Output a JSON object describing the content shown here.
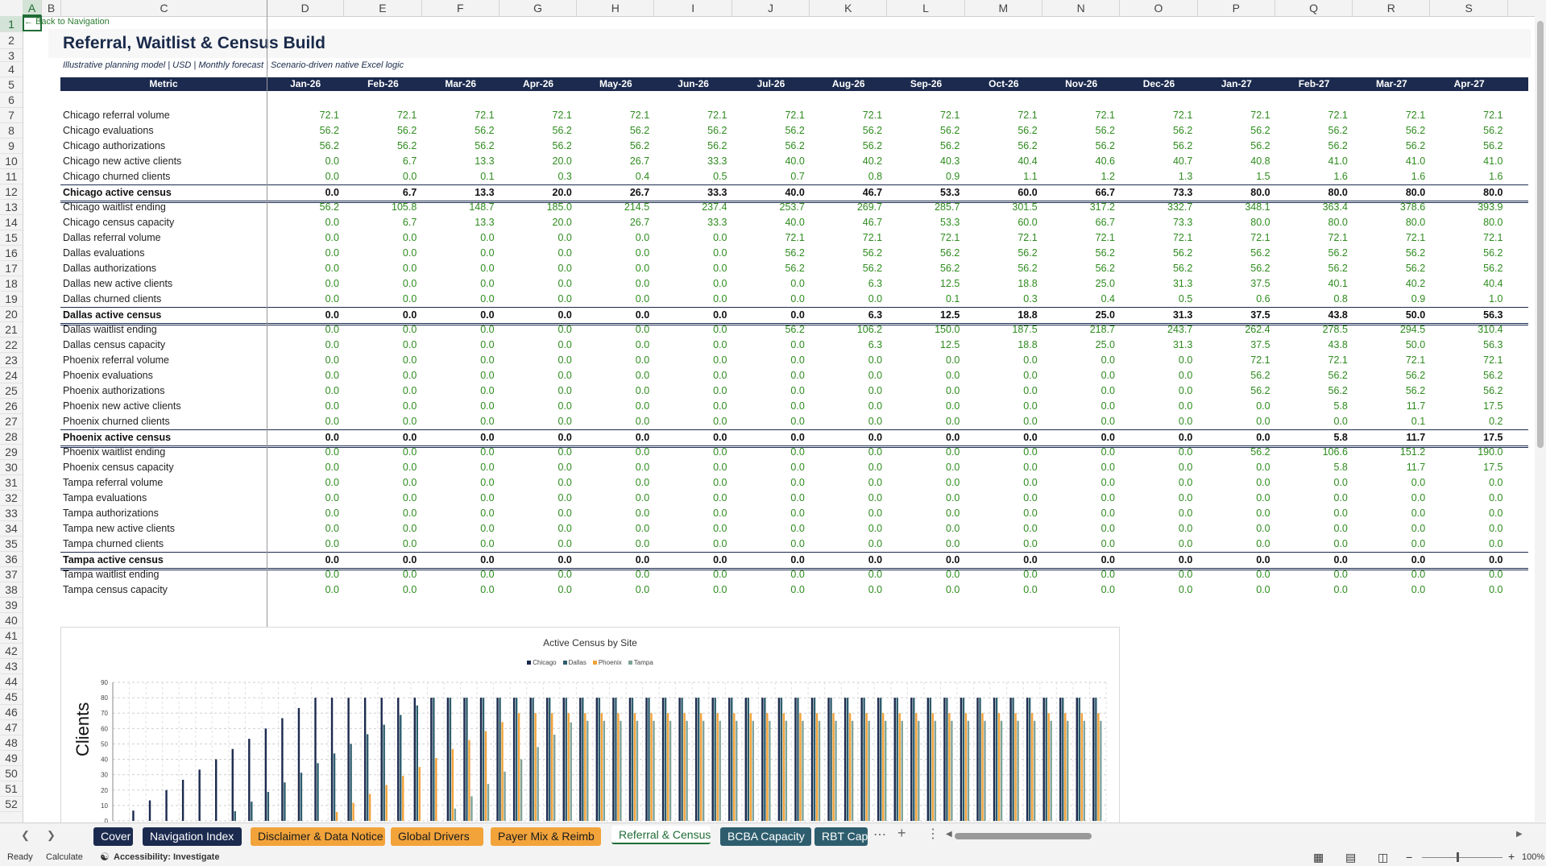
{
  "columns": [
    "A",
    "B",
    "C",
    "D",
    "E",
    "F",
    "G",
    "H",
    "I",
    "J",
    "K",
    "L",
    "M",
    "N",
    "O",
    "P",
    "Q",
    "R",
    "S"
  ],
  "row_numbers": [
    1,
    2,
    3,
    4,
    5,
    6,
    7,
    8,
    9,
    10,
    11,
    12,
    13,
    14,
    15,
    16,
    17,
    18,
    19,
    20,
    21,
    22,
    23,
    24,
    25,
    26,
    27,
    28,
    29,
    30,
    31,
    32,
    33,
    34,
    35,
    36,
    37,
    38,
    39,
    40,
    41,
    42,
    43,
    44,
    45,
    46,
    47,
    48,
    49,
    50,
    51,
    52
  ],
  "back_link": "← Back to Navigation",
  "title": "Referral, Waitlist & Census Build",
  "subtitle": "Illustrative planning model | USD | Monthly forecast | Scenario-driven native Excel logic",
  "header": {
    "metric_label": "Metric",
    "months": [
      "Jan-26",
      "Feb-26",
      "Mar-26",
      "Apr-26",
      "May-26",
      "Jun-26",
      "Jul-26",
      "Aug-26",
      "Sep-26",
      "Oct-26",
      "Nov-26",
      "Dec-26",
      "Jan-27",
      "Feb-27",
      "Mar-27",
      "Apr-27"
    ]
  },
  "rows": [
    {
      "label": "Chicago referral volume",
      "values": [
        "72.1",
        "72.1",
        "72.1",
        "72.1",
        "72.1",
        "72.1",
        "72.1",
        "72.1",
        "72.1",
        "72.1",
        "72.1",
        "72.1",
        "72.1",
        "72.1",
        "72.1",
        "72.1"
      ],
      "total": false
    },
    {
      "label": "Chicago evaluations",
      "values": [
        "56.2",
        "56.2",
        "56.2",
        "56.2",
        "56.2",
        "56.2",
        "56.2",
        "56.2",
        "56.2",
        "56.2",
        "56.2",
        "56.2",
        "56.2",
        "56.2",
        "56.2",
        "56.2"
      ],
      "total": false
    },
    {
      "label": "Chicago authorizations",
      "values": [
        "56.2",
        "56.2",
        "56.2",
        "56.2",
        "56.2",
        "56.2",
        "56.2",
        "56.2",
        "56.2",
        "56.2",
        "56.2",
        "56.2",
        "56.2",
        "56.2",
        "56.2",
        "56.2"
      ],
      "total": false
    },
    {
      "label": "Chicago new active clients",
      "values": [
        "0.0",
        "6.7",
        "13.3",
        "20.0",
        "26.7",
        "33.3",
        "40.0",
        "40.2",
        "40.3",
        "40.4",
        "40.6",
        "40.7",
        "40.8",
        "41.0",
        "41.0",
        "41.0"
      ],
      "total": false
    },
    {
      "label": "Chicago churned clients",
      "values": [
        "0.0",
        "0.0",
        "0.1",
        "0.3",
        "0.4",
        "0.5",
        "0.7",
        "0.8",
        "0.9",
        "1.1",
        "1.2",
        "1.3",
        "1.5",
        "1.6",
        "1.6",
        "1.6"
      ],
      "total": false
    },
    {
      "label": "Chicago active census",
      "values": [
        "0.0",
        "6.7",
        "13.3",
        "20.0",
        "26.7",
        "33.3",
        "40.0",
        "46.7",
        "53.3",
        "60.0",
        "66.7",
        "73.3",
        "80.0",
        "80.0",
        "80.0",
        "80.0"
      ],
      "total": true
    },
    {
      "label": "Chicago waitlist ending",
      "values": [
        "56.2",
        "105.8",
        "148.7",
        "185.0",
        "214.5",
        "237.4",
        "253.7",
        "269.7",
        "285.7",
        "301.5",
        "317.2",
        "332.7",
        "348.1",
        "363.4",
        "378.6",
        "393.9"
      ],
      "total": false
    },
    {
      "label": "Chicago census capacity",
      "values": [
        "0.0",
        "6.7",
        "13.3",
        "20.0",
        "26.7",
        "33.3",
        "40.0",
        "46.7",
        "53.3",
        "60.0",
        "66.7",
        "73.3",
        "80.0",
        "80.0",
        "80.0",
        "80.0"
      ],
      "total": false
    },
    {
      "label": "Dallas referral volume",
      "values": [
        "0.0",
        "0.0",
        "0.0",
        "0.0",
        "0.0",
        "0.0",
        "72.1",
        "72.1",
        "72.1",
        "72.1",
        "72.1",
        "72.1",
        "72.1",
        "72.1",
        "72.1",
        "72.1"
      ],
      "total": false
    },
    {
      "label": "Dallas evaluations",
      "values": [
        "0.0",
        "0.0",
        "0.0",
        "0.0",
        "0.0",
        "0.0",
        "56.2",
        "56.2",
        "56.2",
        "56.2",
        "56.2",
        "56.2",
        "56.2",
        "56.2",
        "56.2",
        "56.2"
      ],
      "total": false
    },
    {
      "label": "Dallas authorizations",
      "values": [
        "0.0",
        "0.0",
        "0.0",
        "0.0",
        "0.0",
        "0.0",
        "56.2",
        "56.2",
        "56.2",
        "56.2",
        "56.2",
        "56.2",
        "56.2",
        "56.2",
        "56.2",
        "56.2"
      ],
      "total": false
    },
    {
      "label": "Dallas new active clients",
      "values": [
        "0.0",
        "0.0",
        "0.0",
        "0.0",
        "0.0",
        "0.0",
        "0.0",
        "6.3",
        "12.5",
        "18.8",
        "25.0",
        "31.3",
        "37.5",
        "40.1",
        "40.2",
        "40.4"
      ],
      "total": false
    },
    {
      "label": "Dallas churned clients",
      "values": [
        "0.0",
        "0.0",
        "0.0",
        "0.0",
        "0.0",
        "0.0",
        "0.0",
        "0.0",
        "0.1",
        "0.3",
        "0.4",
        "0.5",
        "0.6",
        "0.8",
        "0.9",
        "1.0"
      ],
      "total": false
    },
    {
      "label": "Dallas active census",
      "values": [
        "0.0",
        "0.0",
        "0.0",
        "0.0",
        "0.0",
        "0.0",
        "0.0",
        "6.3",
        "12.5",
        "18.8",
        "25.0",
        "31.3",
        "37.5",
        "43.8",
        "50.0",
        "56.3"
      ],
      "total": true
    },
    {
      "label": "Dallas waitlist ending",
      "values": [
        "0.0",
        "0.0",
        "0.0",
        "0.0",
        "0.0",
        "0.0",
        "56.2",
        "106.2",
        "150.0",
        "187.5",
        "218.7",
        "243.7",
        "262.4",
        "278.5",
        "294.5",
        "310.4"
      ],
      "total": false
    },
    {
      "label": "Dallas census capacity",
      "values": [
        "0.0",
        "0.0",
        "0.0",
        "0.0",
        "0.0",
        "0.0",
        "0.0",
        "6.3",
        "12.5",
        "18.8",
        "25.0",
        "31.3",
        "37.5",
        "43.8",
        "50.0",
        "56.3"
      ],
      "total": false
    },
    {
      "label": "Phoenix referral volume",
      "values": [
        "0.0",
        "0.0",
        "0.0",
        "0.0",
        "0.0",
        "0.0",
        "0.0",
        "0.0",
        "0.0",
        "0.0",
        "0.0",
        "0.0",
        "72.1",
        "72.1",
        "72.1",
        "72.1"
      ],
      "total": false
    },
    {
      "label": "Phoenix evaluations",
      "values": [
        "0.0",
        "0.0",
        "0.0",
        "0.0",
        "0.0",
        "0.0",
        "0.0",
        "0.0",
        "0.0",
        "0.0",
        "0.0",
        "0.0",
        "56.2",
        "56.2",
        "56.2",
        "56.2"
      ],
      "total": false
    },
    {
      "label": "Phoenix authorizations",
      "values": [
        "0.0",
        "0.0",
        "0.0",
        "0.0",
        "0.0",
        "0.0",
        "0.0",
        "0.0",
        "0.0",
        "0.0",
        "0.0",
        "0.0",
        "56.2",
        "56.2",
        "56.2",
        "56.2"
      ],
      "total": false
    },
    {
      "label": "Phoenix new active clients",
      "values": [
        "0.0",
        "0.0",
        "0.0",
        "0.0",
        "0.0",
        "0.0",
        "0.0",
        "0.0",
        "0.0",
        "0.0",
        "0.0",
        "0.0",
        "0.0",
        "5.8",
        "11.7",
        "17.5"
      ],
      "total": false
    },
    {
      "label": "Phoenix churned clients",
      "values": [
        "0.0",
        "0.0",
        "0.0",
        "0.0",
        "0.0",
        "0.0",
        "0.0",
        "0.0",
        "0.0",
        "0.0",
        "0.0",
        "0.0",
        "0.0",
        "0.0",
        "0.1",
        "0.2"
      ],
      "total": false
    },
    {
      "label": "Phoenix active census",
      "values": [
        "0.0",
        "0.0",
        "0.0",
        "0.0",
        "0.0",
        "0.0",
        "0.0",
        "0.0",
        "0.0",
        "0.0",
        "0.0",
        "0.0",
        "0.0",
        "5.8",
        "11.7",
        "17.5"
      ],
      "total": true
    },
    {
      "label": "Phoenix waitlist ending",
      "values": [
        "0.0",
        "0.0",
        "0.0",
        "0.0",
        "0.0",
        "0.0",
        "0.0",
        "0.0",
        "0.0",
        "0.0",
        "0.0",
        "0.0",
        "56.2",
        "106.6",
        "151.2",
        "190.0"
      ],
      "total": false
    },
    {
      "label": "Phoenix census capacity",
      "values": [
        "0.0",
        "0.0",
        "0.0",
        "0.0",
        "0.0",
        "0.0",
        "0.0",
        "0.0",
        "0.0",
        "0.0",
        "0.0",
        "0.0",
        "0.0",
        "5.8",
        "11.7",
        "17.5"
      ],
      "total": false
    },
    {
      "label": "Tampa referral volume",
      "values": [
        "0.0",
        "0.0",
        "0.0",
        "0.0",
        "0.0",
        "0.0",
        "0.0",
        "0.0",
        "0.0",
        "0.0",
        "0.0",
        "0.0",
        "0.0",
        "0.0",
        "0.0",
        "0.0"
      ],
      "total": false
    },
    {
      "label": "Tampa evaluations",
      "values": [
        "0.0",
        "0.0",
        "0.0",
        "0.0",
        "0.0",
        "0.0",
        "0.0",
        "0.0",
        "0.0",
        "0.0",
        "0.0",
        "0.0",
        "0.0",
        "0.0",
        "0.0",
        "0.0"
      ],
      "total": false
    },
    {
      "label": "Tampa authorizations",
      "values": [
        "0.0",
        "0.0",
        "0.0",
        "0.0",
        "0.0",
        "0.0",
        "0.0",
        "0.0",
        "0.0",
        "0.0",
        "0.0",
        "0.0",
        "0.0",
        "0.0",
        "0.0",
        "0.0"
      ],
      "total": false
    },
    {
      "label": "Tampa new active clients",
      "values": [
        "0.0",
        "0.0",
        "0.0",
        "0.0",
        "0.0",
        "0.0",
        "0.0",
        "0.0",
        "0.0",
        "0.0",
        "0.0",
        "0.0",
        "0.0",
        "0.0",
        "0.0",
        "0.0"
      ],
      "total": false
    },
    {
      "label": "Tampa churned clients",
      "values": [
        "0.0",
        "0.0",
        "0.0",
        "0.0",
        "0.0",
        "0.0",
        "0.0",
        "0.0",
        "0.0",
        "0.0",
        "0.0",
        "0.0",
        "0.0",
        "0.0",
        "0.0",
        "0.0"
      ],
      "total": false
    },
    {
      "label": "Tampa active census",
      "values": [
        "0.0",
        "0.0",
        "0.0",
        "0.0",
        "0.0",
        "0.0",
        "0.0",
        "0.0",
        "0.0",
        "0.0",
        "0.0",
        "0.0",
        "0.0",
        "0.0",
        "0.0",
        "0.0"
      ],
      "total": true
    },
    {
      "label": "Tampa waitlist ending",
      "values": [
        "0.0",
        "0.0",
        "0.0",
        "0.0",
        "0.0",
        "0.0",
        "0.0",
        "0.0",
        "0.0",
        "0.0",
        "0.0",
        "0.0",
        "0.0",
        "0.0",
        "0.0",
        "0.0"
      ],
      "total": false
    },
    {
      "label": "Tampa census capacity",
      "values": [
        "0.0",
        "0.0",
        "0.0",
        "0.0",
        "0.0",
        "0.0",
        "0.0",
        "0.0",
        "0.0",
        "0.0",
        "0.0",
        "0.0",
        "0.0",
        "0.0",
        "0.0",
        "0.0"
      ],
      "total": false
    }
  ],
  "chart_data": {
    "type": "bar",
    "title": "Active Census by Site",
    "ylabel": "Clients",
    "ylim": [
      0,
      90
    ],
    "yticks": [
      0,
      10,
      20,
      30,
      40,
      50,
      60,
      70,
      80,
      90
    ],
    "grid": true,
    "legend_position": "top",
    "series": [
      {
        "name": "Chicago",
        "color": "#1b2a4e",
        "values": [
          0,
          6.7,
          13.3,
          20,
          26.7,
          33.3,
          40,
          46.7,
          53.3,
          60,
          66.7,
          73.3,
          80,
          80,
          80,
          80,
          80,
          80,
          80,
          80,
          80,
          80,
          80,
          80,
          80,
          80,
          80,
          80,
          80,
          80,
          80,
          80,
          80,
          80,
          80,
          80,
          80,
          80,
          80,
          80,
          80,
          80,
          80,
          80,
          80,
          80,
          80,
          80,
          80,
          80,
          80,
          80,
          80,
          80,
          80,
          80,
          80,
          80,
          80,
          80
        ]
      },
      {
        "name": "Dallas",
        "color": "#2e5e6e",
        "values": [
          0,
          0,
          0,
          0,
          0,
          0,
          0,
          6.3,
          12.5,
          18.8,
          25,
          31.3,
          37.5,
          43.8,
          50,
          56.3,
          62.5,
          68.8,
          75,
          80,
          80,
          80,
          80,
          80,
          80,
          80,
          80,
          80,
          80,
          80,
          80,
          80,
          80,
          80,
          80,
          80,
          80,
          80,
          80,
          80,
          80,
          80,
          80,
          80,
          80,
          80,
          80,
          80,
          80,
          80,
          80,
          80,
          80,
          80,
          80,
          80,
          80,
          80,
          80,
          80
        ]
      },
      {
        "name": "Phoenix",
        "color": "#f2a33a",
        "values": [
          0,
          0,
          0,
          0,
          0,
          0,
          0,
          0,
          0,
          0,
          0,
          0,
          0,
          5.8,
          11.7,
          17.5,
          23.3,
          29.2,
          35,
          40.8,
          46.7,
          52.5,
          58.3,
          64.2,
          70,
          70,
          70,
          70,
          70,
          70,
          70,
          70,
          70,
          70,
          70,
          70,
          70,
          70,
          70,
          70,
          70,
          70,
          70,
          70,
          70,
          70,
          70,
          70,
          70,
          70,
          70,
          70,
          70,
          70,
          70,
          70,
          70,
          70,
          70,
          70
        ]
      },
      {
        "name": "Tampa",
        "color": "#7fa39a",
        "values": [
          0,
          0,
          0,
          0,
          0,
          0,
          0,
          0,
          0,
          0,
          0,
          0,
          0,
          0,
          0,
          0,
          0,
          0,
          0,
          0,
          8,
          16,
          24,
          32,
          40,
          48,
          56,
          64,
          65,
          65,
          65,
          65,
          65,
          65,
          65,
          65,
          65,
          65,
          65,
          65,
          65,
          65,
          65,
          65,
          65,
          65,
          65,
          65,
          65,
          65,
          65,
          65,
          65,
          65,
          65,
          65,
          65,
          65,
          65,
          65
        ]
      }
    ]
  },
  "sheet_tabs": [
    {
      "label": "Cover",
      "style": "navy"
    },
    {
      "label": "Navigation Index",
      "style": "navy"
    },
    {
      "label": "Disclaimer & Data Notice",
      "style": "orange"
    },
    {
      "label": "Global Drivers",
      "style": "orange"
    },
    {
      "label": "Payer Mix & Reimb",
      "style": "orange"
    },
    {
      "label": "Referral & Census",
      "style": "active"
    },
    {
      "label": "BCBA Capacity",
      "style": "teal"
    },
    {
      "label": "RBT Capacity",
      "style": "teal"
    }
  ],
  "status": {
    "ready": "Ready",
    "calculate": "Calculate",
    "accessibility": "Accessibility: Investigate",
    "zoom": "100%"
  }
}
